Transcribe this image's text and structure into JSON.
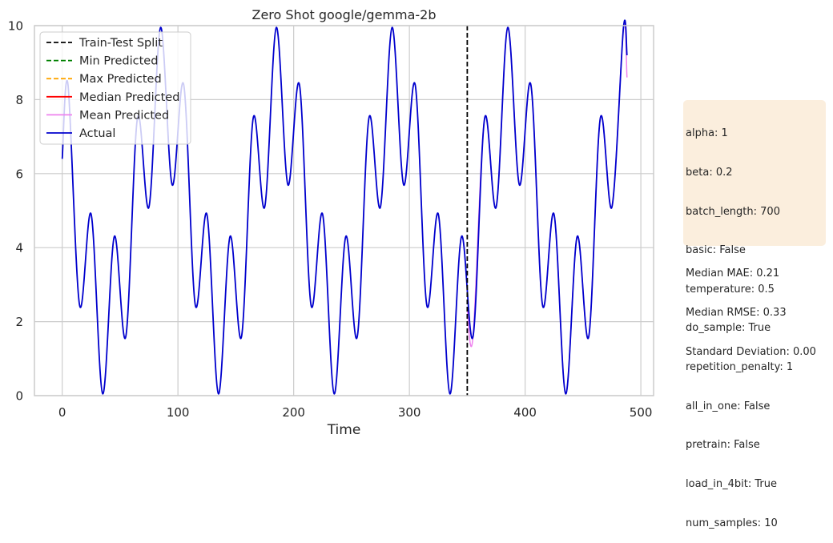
{
  "chart_data": {
    "type": "line",
    "title": "Zero Shot google/gemma-2b",
    "xlabel": "Time",
    "ylabel": "",
    "xlim": [
      -24,
      511
    ],
    "ylim": [
      0,
      10
    ],
    "xticks": [
      0,
      100,
      200,
      300,
      400,
      500
    ],
    "yticks": [
      0,
      2,
      4,
      6,
      8,
      10
    ],
    "grid": true,
    "legend_position": "top-left",
    "split_x": 350,
    "series": [
      {
        "name": "Train-Test Split",
        "style": "dashed",
        "color": "#000000"
      },
      {
        "name": "Min Predicted",
        "style": "dashed",
        "color": "#008000"
      },
      {
        "name": "Max Predicted",
        "style": "dashed",
        "color": "#ffa500"
      },
      {
        "name": "Median Predicted",
        "style": "solid",
        "color": "#ff0000"
      },
      {
        "name": "Mean Predicted",
        "style": "solid",
        "color": "#ee82ee"
      },
      {
        "name": "Actual",
        "style": "solid",
        "color": "#0000cd"
      }
    ],
    "actual": {
      "x": [
        0,
        5,
        15,
        25,
        35,
        45,
        55,
        65,
        75,
        85,
        95,
        105,
        115,
        125,
        135,
        145,
        155,
        165,
        175,
        185,
        195,
        205,
        215,
        225,
        235,
        245,
        255,
        265,
        275,
        285,
        295,
        305,
        315,
        325,
        335,
        345,
        355,
        365,
        375,
        385,
        395,
        405,
        415,
        425,
        435,
        445,
        455,
        465,
        475,
        485,
        488
      ],
      "y": [
        6.4,
        8.4,
        2.45,
        4.9,
        0.05,
        4.3,
        1.6,
        7.5,
        5.1,
        9.95,
        5.7,
        8.4,
        2.45,
        4.9,
        0.05,
        4.3,
        1.6,
        7.5,
        5.1,
        9.95,
        5.7,
        8.4,
        2.45,
        4.9,
        0.05,
        4.3,
        1.6,
        7.5,
        5.1,
        9.95,
        5.7,
        8.4,
        2.45,
        4.9,
        0.05,
        4.3,
        1.6,
        7.5,
        5.1,
        9.95,
        5.7,
        8.4,
        2.45,
        4.9,
        0.05,
        4.3,
        1.6,
        7.5,
        5.1,
        9.95,
        9.2
      ]
    },
    "predicted_mean": {
      "x": [
        350,
        355,
        365,
        375,
        385,
        395,
        405,
        415,
        425,
        435,
        445,
        455,
        465,
        475,
        485,
        488
      ],
      "y": [
        2.3,
        1.6,
        7.5,
        5.1,
        9.95,
        5.7,
        8.4,
        2.45,
        4.9,
        0.05,
        4.3,
        1.6,
        7.5,
        5.1,
        9.95,
        8.6
      ]
    }
  },
  "parameters": [
    "alpha: 1",
    "beta: 0.2",
    "batch_length: 700",
    "basic: False",
    "temperature: 0.5",
    "do_sample: True",
    "repetition_penalty: 1",
    "all_in_one: False",
    "pretrain: False",
    "load_in_4bit: True",
    "num_samples: 10"
  ],
  "metrics": [
    "Median MAE: 0.21",
    "Median RMSE: 0.33",
    "Standard Deviation: 0.00"
  ]
}
